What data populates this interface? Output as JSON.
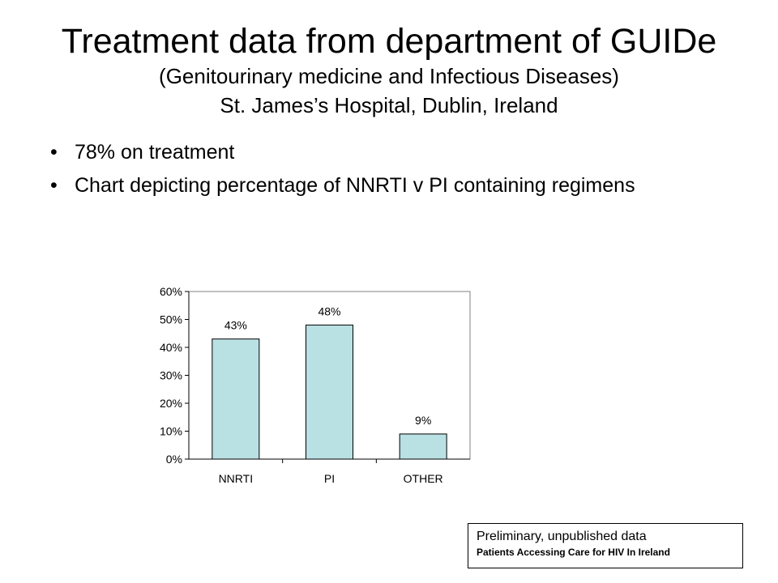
{
  "slide": {
    "title": "Treatment data from department of GUIDe",
    "subtitle_line1": "(Genitourinary medicine and Infectious Diseases)",
    "subtitle_line2": "St. James’s Hospital, Dublin, Ireland",
    "bullets": [
      "78% on treatment",
      "Chart depicting percentage of NNRTI v PI containing regimens"
    ],
    "bullet_glyph": "•"
  },
  "chart_data": {
    "type": "bar",
    "categories": [
      "NNRTI",
      "PI",
      "OTHER"
    ],
    "values": [
      43,
      48,
      9
    ],
    "data_labels": [
      "43%",
      "48%",
      "9%"
    ],
    "ylim": [
      0,
      60
    ],
    "y_ticks": [
      "0%",
      "10%",
      "20%",
      "30%",
      "40%",
      "50%",
      "60%"
    ],
    "title": "",
    "xlabel": "",
    "ylabel": "",
    "grid": false,
    "bar_color": "#b9e0e3"
  },
  "note": {
    "line1": "Preliminary, unpublished data",
    "line2": "Patients Accessing Care for HIV In Ireland"
  }
}
